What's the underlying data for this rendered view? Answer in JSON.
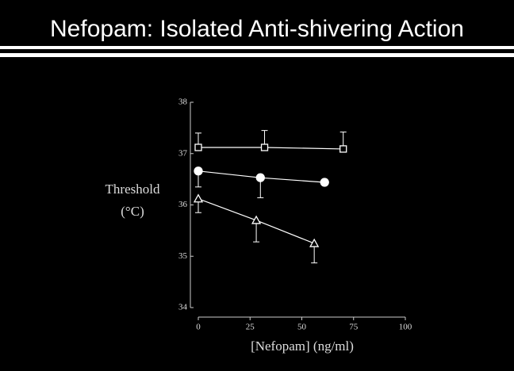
{
  "chart_data": {
    "type": "line",
    "title": "Nefopam: Isolated Anti-shivering Action",
    "xlabel": "[Nefopam] (ng/ml)",
    "ylabel_lines": [
      "Threshold",
      "(°C)"
    ],
    "xlim": [
      0,
      100
    ],
    "xticks": [
      0,
      25,
      50,
      75,
      100
    ],
    "ylim": [
      34,
      38
    ],
    "yticks": [
      34,
      35,
      36,
      37,
      38
    ],
    "series": [
      {
        "color": "#ffffff",
        "fill": "#000000",
        "marker": "square",
        "error_direction": "up",
        "x": [
          0,
          32,
          70
        ],
        "values": [
          37.12,
          37.12,
          37.09
        ],
        "errors": [
          0.28,
          0.33,
          0.33
        ]
      },
      {
        "color": "#ffffff",
        "fill": "#ffffff",
        "marker": "circle",
        "error_direction": "down",
        "x": [
          0,
          30,
          61
        ],
        "values": [
          36.66,
          36.53,
          36.44
        ],
        "errors": [
          0.31,
          0.39,
          null
        ]
      },
      {
        "color": "#ffffff",
        "fill": "#000000",
        "marker": "triangle",
        "error_direction": "down",
        "x": [
          0,
          28,
          56
        ],
        "values": [
          36.12,
          35.7,
          35.25
        ],
        "errors": [
          0.27,
          0.42,
          0.38
        ]
      }
    ]
  }
}
